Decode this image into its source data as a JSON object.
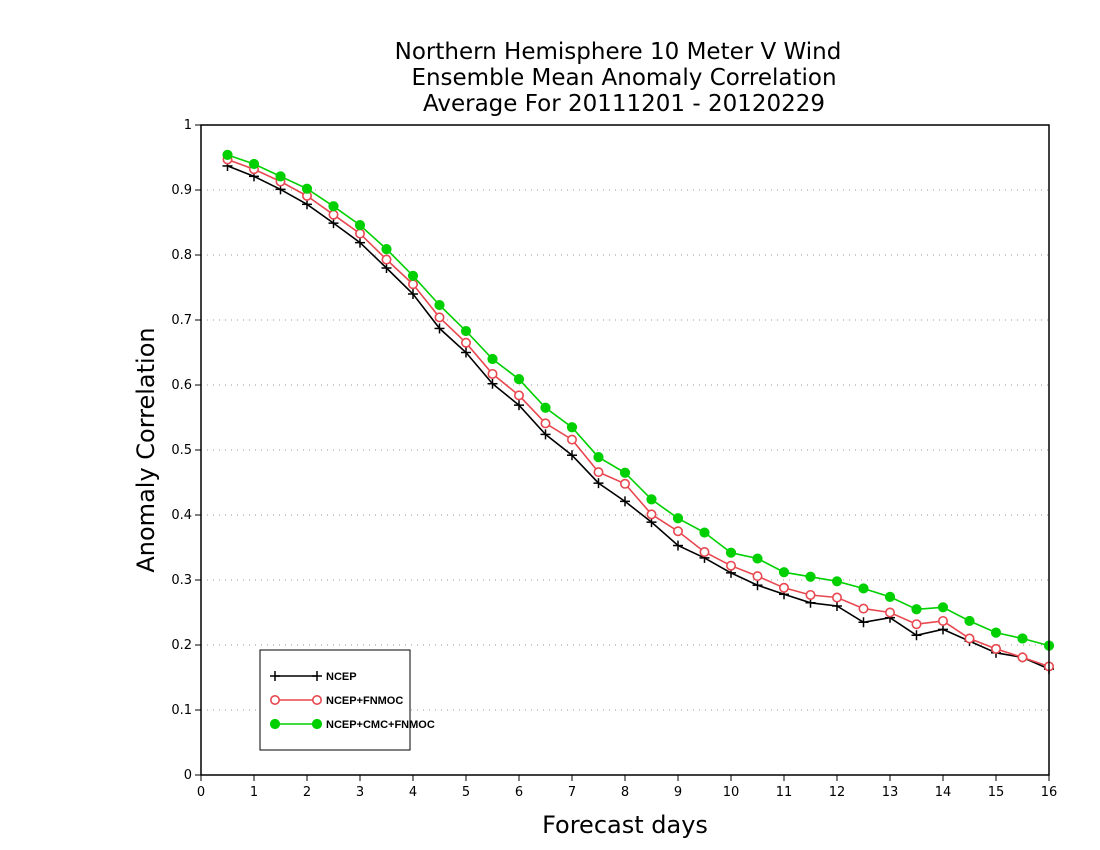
{
  "chart_data": {
    "type": "line",
    "title": [
      "Northern Hemisphere 10 Meter V Wind",
      "Ensemble Mean Anomaly Correlation",
      "Average For 20111201 - 20120229"
    ],
    "xlabel": "Forecast days",
    "ylabel": "Anomaly Correlation",
    "xlim": [
      0,
      16
    ],
    "ylim": [
      0,
      1
    ],
    "xticks": [
      0,
      1,
      2,
      3,
      4,
      5,
      6,
      7,
      8,
      9,
      10,
      11,
      12,
      13,
      14,
      15,
      16
    ],
    "yticks": [
      0,
      0.1,
      0.2,
      0.3,
      0.4,
      0.5,
      0.6,
      0.7,
      0.8,
      0.9,
      1
    ],
    "ytick_labels": [
      "0",
      "0.1",
      "0.2",
      "0.3",
      "0.4",
      "0.5",
      "0.6",
      "0.7",
      "0.8",
      "0.9",
      "1"
    ],
    "grid": "horizontal dotted",
    "legend_position": "bottom-left",
    "x": [
      0.5,
      1,
      1.5,
      2,
      2.5,
      3,
      3.5,
      4,
      4.5,
      5,
      5.5,
      6,
      6.5,
      7,
      7.5,
      8,
      8.5,
      9,
      9.5,
      10,
      10.5,
      11,
      11.5,
      12,
      12.5,
      13,
      13.5,
      14,
      14.5,
      15,
      15.5,
      16
    ],
    "series": [
      {
        "name": "NCEP",
        "color": "#000000",
        "marker": "plus",
        "values": [
          0.937,
          0.921,
          0.901,
          0.878,
          0.849,
          0.819,
          0.78,
          0.74,
          0.687,
          0.65,
          0.602,
          0.569,
          0.524,
          0.492,
          0.449,
          0.421,
          0.389,
          0.353,
          0.334,
          0.311,
          0.292,
          0.278,
          0.265,
          0.26,
          0.235,
          0.242,
          0.215,
          0.224,
          0.206,
          0.188,
          0.181,
          0.163
        ]
      },
      {
        "name": "NCEP+FNMOC",
        "color": "#e8474f",
        "marker": "open-circle",
        "values": [
          0.947,
          0.932,
          0.913,
          0.891,
          0.862,
          0.833,
          0.793,
          0.755,
          0.704,
          0.665,
          0.617,
          0.584,
          0.541,
          0.516,
          0.466,
          0.448,
          0.401,
          0.375,
          0.343,
          0.322,
          0.306,
          0.288,
          0.277,
          0.273,
          0.256,
          0.25,
          0.232,
          0.237,
          0.21,
          0.194,
          0.181,
          0.167
        ]
      },
      {
        "name": "NCEP+CMC+FNMOC",
        "color": "#00d000",
        "marker": "filled-circle",
        "values": [
          0.954,
          0.94,
          0.921,
          0.902,
          0.875,
          0.846,
          0.809,
          0.768,
          0.723,
          0.683,
          0.64,
          0.609,
          0.565,
          0.535,
          0.489,
          0.465,
          0.424,
          0.395,
          0.373,
          0.342,
          0.333,
          0.312,
          0.305,
          0.298,
          0.287,
          0.274,
          0.255,
          0.258,
          0.237,
          0.219,
          0.21,
          0.199
        ]
      }
    ]
  }
}
